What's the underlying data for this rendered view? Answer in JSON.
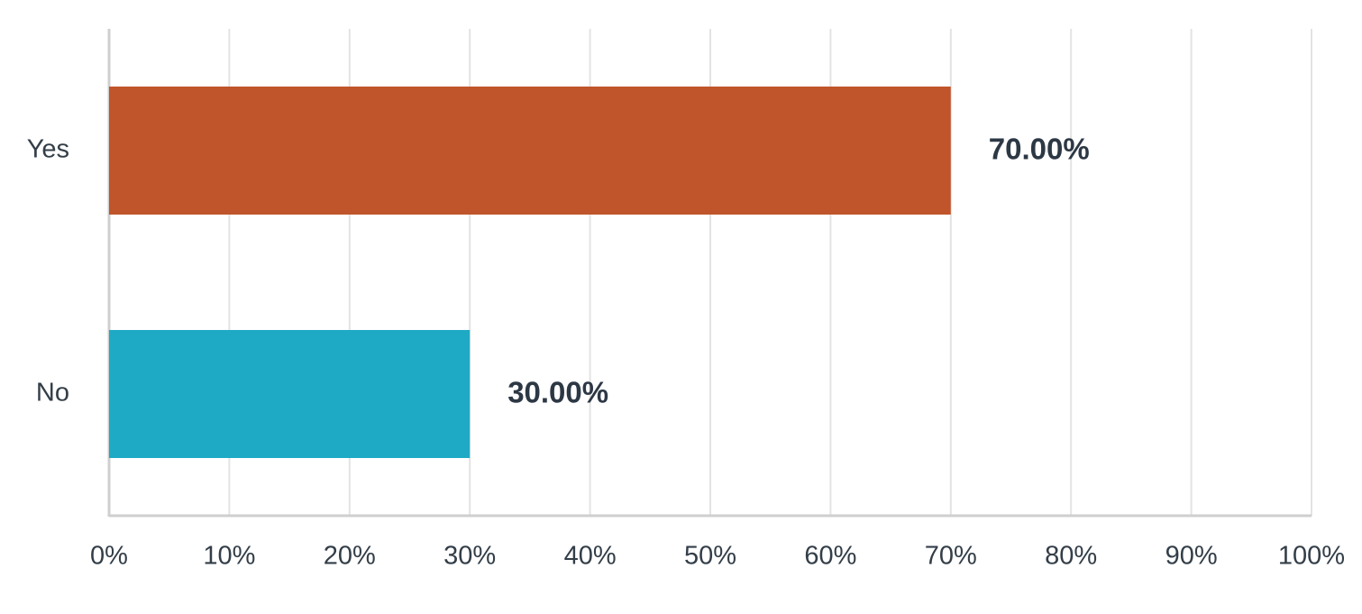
{
  "chart_data": {
    "type": "bar",
    "orientation": "horizontal",
    "categories": [
      "Yes",
      "No"
    ],
    "values": [
      70,
      30
    ],
    "value_labels": [
      "70.00%",
      "30.00%"
    ],
    "colors": [
      "#c0552b",
      "#1eaac4"
    ],
    "xlim": [
      0,
      100
    ],
    "xticks": [
      {
        "value": 0,
        "label": "0%"
      },
      {
        "value": 10,
        "label": "10%"
      },
      {
        "value": 20,
        "label": "20%"
      },
      {
        "value": 30,
        "label": "30%"
      },
      {
        "value": 40,
        "label": "40%"
      },
      {
        "value": 50,
        "label": "50%"
      },
      {
        "value": 60,
        "label": "60%"
      },
      {
        "value": 70,
        "label": "70%"
      },
      {
        "value": 80,
        "label": "80%"
      },
      {
        "value": 90,
        "label": "90%"
      },
      {
        "value": 100,
        "label": "100%"
      }
    ],
    "grid": true
  }
}
